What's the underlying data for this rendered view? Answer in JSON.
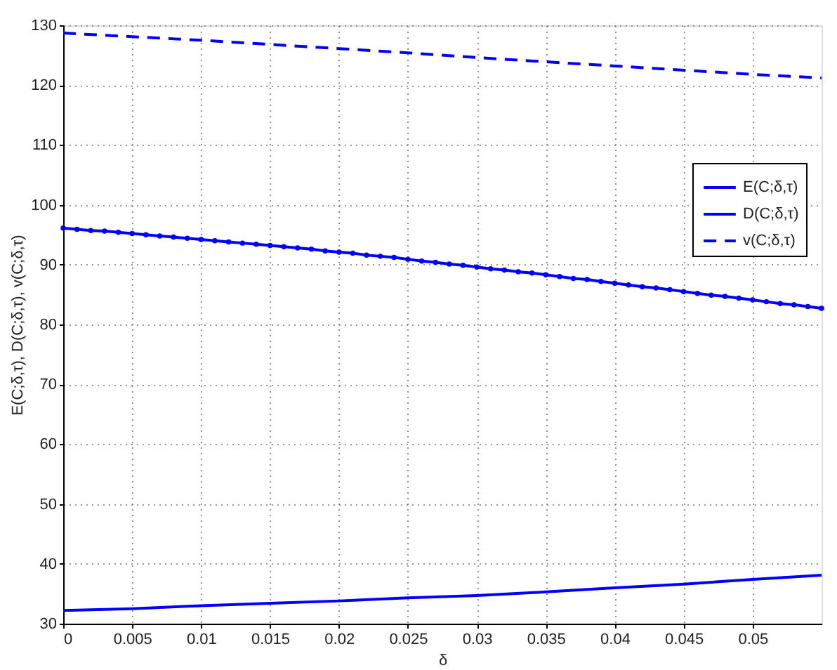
{
  "chart_data": {
    "type": "line",
    "xlabel": "δ",
    "ylabel": "E(C;δ,τ), D(C;δ,τ), v(C;δ,τ)",
    "x": [
      0,
      0.005,
      0.01,
      0.015,
      0.02,
      0.025,
      0.03,
      0.035,
      0.04,
      0.045,
      0.05,
      0.055
    ],
    "series": [
      {
        "name": "E(C;δ,τ)",
        "color": "#0000ff",
        "line_style": "solid",
        "values": [
          32.2,
          32.5,
          33.0,
          33.4,
          33.8,
          34.3,
          34.7,
          35.3,
          36.0,
          36.6,
          37.4,
          38.1
        ]
      },
      {
        "name": "D(C;δ,τ)",
        "color": "#0000ff",
        "line_style": "solid",
        "marker": "circle",
        "x": [
          0,
          0.001,
          0.002,
          0.003,
          0.004,
          0.005,
          0.006,
          0.007,
          0.008,
          0.009,
          0.01,
          0.011,
          0.012,
          0.013,
          0.014,
          0.015,
          0.016,
          0.017,
          0.018,
          0.019,
          0.02,
          0.021,
          0.022,
          0.023,
          0.024,
          0.025,
          0.026,
          0.027,
          0.028,
          0.029,
          0.03,
          0.031,
          0.032,
          0.033,
          0.034,
          0.035,
          0.036,
          0.037,
          0.038,
          0.039,
          0.04,
          0.041,
          0.042,
          0.043,
          0.044,
          0.045,
          0.046,
          0.047,
          0.048,
          0.049,
          0.05,
          0.051,
          0.052,
          0.053,
          0.054,
          0.055
        ],
        "values": [
          96.1,
          95.9,
          95.7,
          95.6,
          95.4,
          95.2,
          95.0,
          94.8,
          94.6,
          94.4,
          94.2,
          94.0,
          93.8,
          93.6,
          93.4,
          93.2,
          93.0,
          92.8,
          92.6,
          92.3,
          92.1,
          91.9,
          91.6,
          91.4,
          91.2,
          90.9,
          90.6,
          90.4,
          90.1,
          89.9,
          89.6,
          89.3,
          89.1,
          88.8,
          88.6,
          88.3,
          88.0,
          87.7,
          87.5,
          87.2,
          86.9,
          86.6,
          86.3,
          86.1,
          85.8,
          85.5,
          85.2,
          84.9,
          84.7,
          84.4,
          84.1,
          83.8,
          83.5,
          83.3,
          83.0,
          82.7
        ]
      },
      {
        "name": "v(C;δ,τ)",
        "color": "#0000ff",
        "line_style": "dashed",
        "values": [
          128.7,
          128.1,
          127.5,
          126.8,
          126.1,
          125.4,
          124.6,
          123.9,
          123.2,
          122.5,
          121.8,
          121.2
        ]
      }
    ],
    "xlim": [
      0,
      0.055
    ],
    "xticks": [
      0,
      0.005,
      0.01,
      0.015,
      0.02,
      0.025,
      0.03,
      0.035,
      0.04,
      0.045,
      0.05
    ],
    "ylim": [
      30,
      130
    ],
    "yticks": [
      30,
      40,
      50,
      60,
      70,
      80,
      90,
      100,
      110,
      120,
      130
    ],
    "grid": true,
    "legend": "right"
  }
}
